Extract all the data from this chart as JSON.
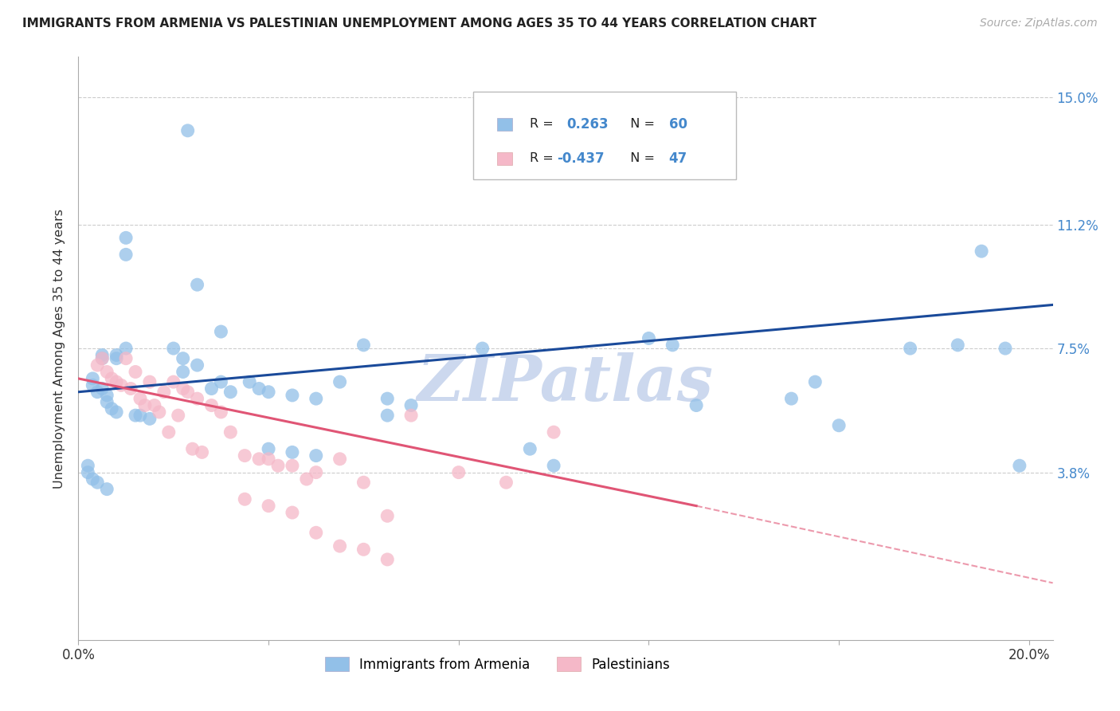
{
  "title": "IMMIGRANTS FROM ARMENIA VS PALESTINIAN UNEMPLOYMENT AMONG AGES 35 TO 44 YEARS CORRELATION CHART",
  "source": "Source: ZipAtlas.com",
  "ylabel": "Unemployment Among Ages 35 to 44 years",
  "ytick_labels": [
    "3.8%",
    "7.5%",
    "11.2%",
    "15.0%"
  ],
  "ytick_values": [
    0.038,
    0.075,
    0.112,
    0.15
  ],
  "xlim": [
    0.0,
    0.205
  ],
  "ylim": [
    -0.012,
    0.162
  ],
  "blue_R": 0.263,
  "blue_N": 60,
  "pink_R": -0.437,
  "pink_N": 47,
  "blue_color": "#92c0e8",
  "pink_color": "#f5b8c8",
  "blue_line_color": "#1a4a9a",
  "pink_line_color": "#e05575",
  "grid_color": "#cccccc",
  "watermark": "ZIPatlas",
  "watermark_color": "#ccd8ee",
  "blue_scatter_x": [
    0.023,
    0.01,
    0.01,
    0.005,
    0.005,
    0.008,
    0.008,
    0.01,
    0.003,
    0.003,
    0.005,
    0.004,
    0.006,
    0.006,
    0.007,
    0.008,
    0.012,
    0.013,
    0.015,
    0.02,
    0.022,
    0.025,
    0.022,
    0.03,
    0.028,
    0.032,
    0.036,
    0.038,
    0.04,
    0.045,
    0.05,
    0.055,
    0.06,
    0.065,
    0.07,
    0.085,
    0.095,
    0.1,
    0.12,
    0.125,
    0.04,
    0.045,
    0.05,
    0.002,
    0.002,
    0.003,
    0.004,
    0.006,
    0.15,
    0.155,
    0.16,
    0.175,
    0.185,
    0.19,
    0.195,
    0.198,
    0.065,
    0.13,
    0.025,
    0.03
  ],
  "blue_scatter_y": [
    0.14,
    0.108,
    0.103,
    0.073,
    0.072,
    0.073,
    0.072,
    0.075,
    0.066,
    0.064,
    0.063,
    0.062,
    0.061,
    0.059,
    0.057,
    0.056,
    0.055,
    0.055,
    0.054,
    0.075,
    0.072,
    0.07,
    0.068,
    0.065,
    0.063,
    0.062,
    0.065,
    0.063,
    0.062,
    0.061,
    0.06,
    0.065,
    0.076,
    0.06,
    0.058,
    0.075,
    0.045,
    0.04,
    0.078,
    0.076,
    0.045,
    0.044,
    0.043,
    0.04,
    0.038,
    0.036,
    0.035,
    0.033,
    0.06,
    0.065,
    0.052,
    0.075,
    0.076,
    0.104,
    0.075,
    0.04,
    0.055,
    0.058,
    0.094,
    0.08
  ],
  "pink_scatter_x": [
    0.004,
    0.005,
    0.006,
    0.007,
    0.008,
    0.009,
    0.01,
    0.011,
    0.012,
    0.013,
    0.014,
    0.015,
    0.016,
    0.017,
    0.018,
    0.019,
    0.02,
    0.021,
    0.022,
    0.023,
    0.024,
    0.025,
    0.026,
    0.028,
    0.03,
    0.032,
    0.035,
    0.038,
    0.04,
    0.042,
    0.045,
    0.048,
    0.05,
    0.055,
    0.06,
    0.065,
    0.07,
    0.08,
    0.09,
    0.1,
    0.035,
    0.04,
    0.045,
    0.05,
    0.055,
    0.06,
    0.065
  ],
  "pink_scatter_y": [
    0.07,
    0.072,
    0.068,
    0.066,
    0.065,
    0.064,
    0.072,
    0.063,
    0.068,
    0.06,
    0.058,
    0.065,
    0.058,
    0.056,
    0.062,
    0.05,
    0.065,
    0.055,
    0.063,
    0.062,
    0.045,
    0.06,
    0.044,
    0.058,
    0.056,
    0.05,
    0.043,
    0.042,
    0.042,
    0.04,
    0.04,
    0.036,
    0.038,
    0.042,
    0.035,
    0.025,
    0.055,
    0.038,
    0.035,
    0.05,
    0.03,
    0.028,
    0.026,
    0.02,
    0.016,
    0.015,
    0.012
  ],
  "legend_box_bg": "#ffffff",
  "legend_box_edge": "#cccccc"
}
